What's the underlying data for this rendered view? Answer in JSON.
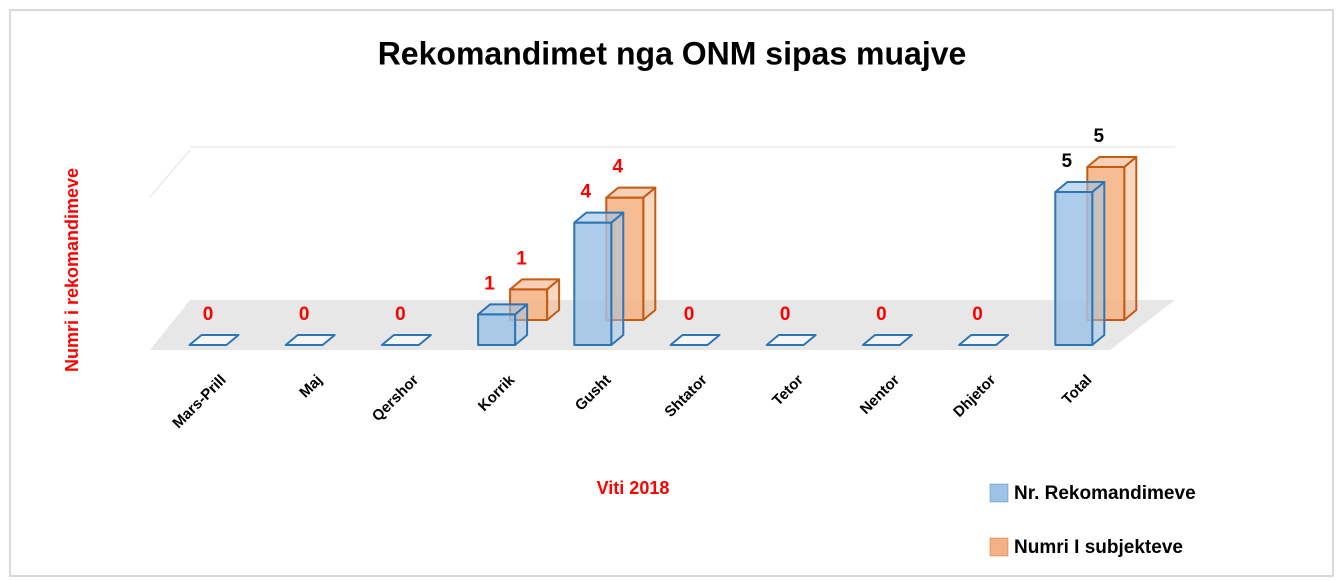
{
  "chart_data": {
    "type": "bar3d",
    "title": "Rekomandimet nga ONM sipas muajve",
    "x_label": "Viti 2018",
    "y_label": "Numri i rekomandimeve",
    "categories": [
      "Mars-Prill",
      "Maj",
      "Qershor",
      "Korrik",
      "Gusht",
      "Shtator",
      "Tetor",
      "Nentor",
      "Dhjetor",
      "Total"
    ],
    "series": [
      {
        "name": "Nr. Rekomandimeve",
        "color": "#9dc3e6",
        "edge": "#2e75b6",
        "values": [
          0,
          0,
          0,
          1,
          4,
          0,
          0,
          0,
          0,
          5
        ],
        "label_colors": [
          "#ff0000",
          "#ff0000",
          "#ff0000",
          "#ff0000",
          "#ff0000",
          "#ff0000",
          "#ff0000",
          "#ff0000",
          "#ff0000",
          "#000000"
        ]
      },
      {
        "name": "Numri I subjekteve",
        "color": "#f4b183",
        "edge": "#c55a11",
        "values": [
          null,
          null,
          null,
          1,
          4,
          null,
          null,
          null,
          null,
          5
        ],
        "label_colors": [
          "#ff0000",
          "#ff0000",
          "#ff0000",
          "#ff0000",
          "#ff0000",
          "#ff0000",
          "#ff0000",
          "#ff0000",
          "#ff0000",
          "#000000"
        ]
      }
    ],
    "ylim": [
      0,
      5
    ],
    "grid": true,
    "legend": "bottom-right"
  }
}
